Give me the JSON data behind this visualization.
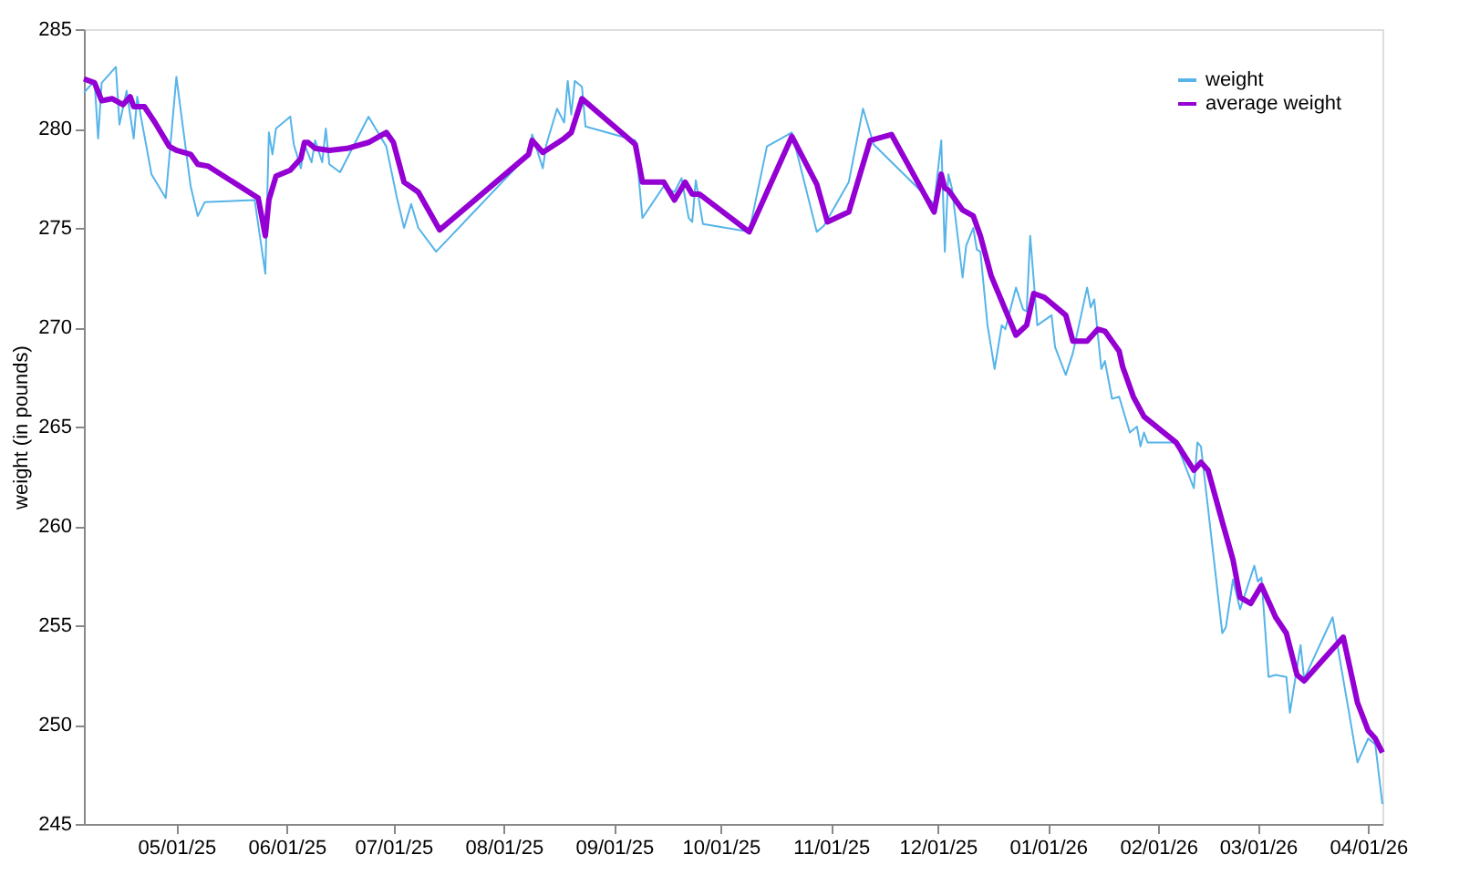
{
  "chart_data": {
    "type": "line",
    "ylabel": "weight (in pounds)",
    "xlim": [
      "2025-04-05",
      "2026-04-05"
    ],
    "ylim": [
      245,
      285
    ],
    "yticks": [
      245,
      250,
      255,
      260,
      265,
      270,
      275,
      280,
      285
    ],
    "xticks": [
      {
        "value": "2025-05-01",
        "label": "05/01/25"
      },
      {
        "value": "2025-06-01",
        "label": "06/01/25"
      },
      {
        "value": "2025-07-01",
        "label": "07/01/25"
      },
      {
        "value": "2025-08-01",
        "label": "08/01/25"
      },
      {
        "value": "2025-09-01",
        "label": "09/01/25"
      },
      {
        "value": "2025-10-01",
        "label": "10/01/25"
      },
      {
        "value": "2025-11-01",
        "label": "11/01/25"
      },
      {
        "value": "2025-12-01",
        "label": "12/01/25"
      },
      {
        "value": "2026-01-01",
        "label": "01/01/26"
      },
      {
        "value": "2026-02-01",
        "label": "02/01/26"
      },
      {
        "value": "2026-03-01",
        "label": "03/01/26"
      },
      {
        "value": "2026-04-01",
        "label": "04/01/26"
      }
    ],
    "grid": false,
    "legend": "top right",
    "marker": "none",
    "line_style": "solid",
    "series": [
      {
        "name": "weight",
        "color": "#56b4e9",
        "x": [
          "2025-04-05",
          "2025-04-08",
          "2025-04-09",
          "2025-04-10",
          "2025-04-14",
          "2025-04-15",
          "2025-04-17",
          "2025-04-19",
          "2025-04-20",
          "2025-04-24",
          "2025-04-28",
          "2025-05-01",
          "2025-05-05",
          "2025-05-07",
          "2025-05-09",
          "2025-05-23",
          "2025-05-26",
          "2025-05-27",
          "2025-05-28",
          "2025-05-29",
          "2025-06-02",
          "2025-06-03",
          "2025-06-05",
          "2025-06-06",
          "2025-06-08",
          "2025-06-09",
          "2025-06-11",
          "2025-06-12",
          "2025-06-13",
          "2025-06-16",
          "2025-06-24",
          "2025-06-29",
          "2025-07-02",
          "2025-07-04",
          "2025-07-06",
          "2025-07-08",
          "2025-07-13",
          "2025-08-08",
          "2025-08-09",
          "2025-08-12",
          "2025-08-13",
          "2025-08-16",
          "2025-08-18",
          "2025-08-19",
          "2025-08-20",
          "2025-08-21",
          "2025-08-23",
          "2025-08-24",
          "2025-09-07",
          "2025-09-09",
          "2025-09-15",
          "2025-09-18",
          "2025-09-20",
          "2025-09-22",
          "2025-09-23",
          "2025-09-24",
          "2025-09-26",
          "2025-10-09",
          "2025-10-14",
          "2025-10-21",
          "2025-10-28",
          "2025-10-30",
          "2025-11-06",
          "2025-11-10",
          "2025-11-13",
          "2025-11-30",
          "2025-12-02",
          "2025-12-03",
          "2025-12-04",
          "2025-12-05",
          "2025-12-08",
          "2025-12-09",
          "2025-12-11",
          "2025-12-12",
          "2025-12-13",
          "2025-12-15",
          "2025-12-17",
          "2025-12-19",
          "2025-12-20",
          "2025-12-23",
          "2025-12-25",
          "2025-12-26",
          "2025-12-27",
          "2025-12-29",
          "2026-01-02",
          "2026-01-03",
          "2026-01-06",
          "2026-01-08",
          "2026-01-12",
          "2026-01-13",
          "2026-01-14",
          "2026-01-16",
          "2026-01-17",
          "2026-01-19",
          "2026-01-21",
          "2026-01-24",
          "2026-01-26",
          "2026-01-27",
          "2026-01-28",
          "2026-01-29",
          "2026-02-06",
          "2026-02-11",
          "2026-02-12",
          "2026-02-13",
          "2026-02-19",
          "2026-02-20",
          "2026-02-22",
          "2026-02-24",
          "2026-02-28",
          "2026-03-01",
          "2026-03-02",
          "2026-03-04",
          "2026-03-06",
          "2026-03-09",
          "2026-03-10",
          "2026-03-13",
          "2026-03-14",
          "2026-03-22",
          "2026-03-27",
          "2026-03-29",
          "2026-04-01",
          "2026-04-03",
          "2026-04-05"
        ],
        "values": [
          281.8,
          282.4,
          279.5,
          282.3,
          283.1,
          280.2,
          281.9,
          279.5,
          281.6,
          277.7,
          276.5,
          282.6,
          277.1,
          275.6,
          276.3,
          276.4,
          272.7,
          279.8,
          278.7,
          280.0,
          280.6,
          279.2,
          278.0,
          279.2,
          278.3,
          279.4,
          278.3,
          280.0,
          278.2,
          277.8,
          280.6,
          279.1,
          276.5,
          275.0,
          276.2,
          275.0,
          273.8,
          278.7,
          279.7,
          278.0,
          279.2,
          281.0,
          280.3,
          282.4,
          280.7,
          282.4,
          282.1,
          280.1,
          279.4,
          275.5,
          277.1,
          276.8,
          277.5,
          275.5,
          275.3,
          277.4,
          275.2,
          274.8,
          279.1,
          279.8,
          274.8,
          275.1,
          277.3,
          281.0,
          279.2,
          276.2,
          279.4,
          273.8,
          277.7,
          277.0,
          272.5,
          274.1,
          275.0,
          273.9,
          273.8,
          270.1,
          267.9,
          270.1,
          269.9,
          272.0,
          270.9,
          270.8,
          274.6,
          270.1,
          270.6,
          269.0,
          267.6,
          268.7,
          272.0,
          271.0,
          271.4,
          267.9,
          268.3,
          266.4,
          266.5,
          264.7,
          265.0,
          264.0,
          264.7,
          264.2,
          264.2,
          261.9,
          264.2,
          264.0,
          254.6,
          254.9,
          257.3,
          255.8,
          258.0,
          257.2,
          257.4,
          252.4,
          252.5,
          252.4,
          250.6,
          254.0,
          252.3,
          255.4,
          250.2,
          248.1,
          249.3,
          249.0,
          246.0
        ]
      },
      {
        "name": "average weight",
        "color": "#9400d3",
        "x": [
          "2025-04-05",
          "2025-04-08",
          "2025-04-10",
          "2025-04-13",
          "2025-04-16",
          "2025-04-18",
          "2025-04-19",
          "2025-04-22",
          "2025-04-25",
          "2025-04-29",
          "2025-05-01",
          "2025-05-05",
          "2025-05-07",
          "2025-05-10",
          "2025-05-24",
          "2025-05-26",
          "2025-05-27",
          "2025-05-29",
          "2025-06-02",
          "2025-06-05",
          "2025-06-06",
          "2025-06-07",
          "2025-06-09",
          "2025-06-13",
          "2025-06-18",
          "2025-06-24",
          "2025-06-29",
          "2025-07-01",
          "2025-07-04",
          "2025-07-08",
          "2025-07-14",
          "2025-08-08",
          "2025-08-09",
          "2025-08-12",
          "2025-08-18",
          "2025-08-20",
          "2025-08-23",
          "2025-09-07",
          "2025-09-09",
          "2025-09-15",
          "2025-09-18",
          "2025-09-21",
          "2025-09-23",
          "2025-09-25",
          "2025-10-09",
          "2025-10-21",
          "2025-10-28",
          "2025-10-31",
          "2025-11-06",
          "2025-11-12",
          "2025-11-18",
          "2025-11-30",
          "2025-12-02",
          "2025-12-03",
          "2025-12-04",
          "2025-12-08",
          "2025-12-11",
          "2025-12-13",
          "2025-12-16",
          "2025-12-23",
          "2025-12-26",
          "2025-12-28",
          "2025-12-31",
          "2026-01-06",
          "2026-01-08",
          "2026-01-12",
          "2026-01-15",
          "2026-01-17",
          "2026-01-21",
          "2026-01-22",
          "2026-01-25",
          "2026-01-28",
          "2026-02-06",
          "2026-02-11",
          "2026-02-13",
          "2026-02-15",
          "2026-02-19",
          "2026-02-22",
          "2026-02-24",
          "2026-02-27",
          "2026-03-02",
          "2026-03-06",
          "2026-03-09",
          "2026-03-12",
          "2026-03-14",
          "2026-03-25",
          "2026-03-29",
          "2026-04-01",
          "2026-04-03",
          "2026-04-05"
        ],
        "values": [
          282.5,
          282.3,
          281.4,
          281.5,
          281.2,
          281.6,
          281.1,
          281.1,
          280.3,
          279.1,
          278.9,
          278.7,
          278.2,
          278.1,
          276.5,
          274.6,
          276.4,
          277.6,
          277.9,
          278.5,
          279.3,
          279.3,
          279.0,
          278.9,
          279.0,
          279.3,
          279.8,
          279.3,
          277.3,
          276.8,
          274.9,
          278.7,
          279.4,
          278.8,
          279.5,
          279.8,
          281.5,
          279.2,
          277.3,
          277.3,
          276.4,
          277.3,
          276.7,
          276.7,
          274.8,
          279.6,
          277.2,
          275.3,
          275.8,
          279.4,
          279.7,
          275.8,
          277.7,
          277.0,
          276.9,
          275.9,
          275.6,
          274.6,
          272.6,
          269.6,
          270.1,
          271.7,
          271.5,
          270.6,
          269.3,
          269.3,
          269.9,
          269.8,
          268.8,
          268.0,
          266.5,
          265.5,
          264.2,
          262.8,
          263.2,
          262.8,
          260.2,
          258.3,
          256.4,
          256.1,
          257.0,
          255.4,
          254.6,
          252.5,
          252.2,
          254.4,
          251.1,
          249.7,
          249.3,
          248.6
        ]
      }
    ]
  }
}
